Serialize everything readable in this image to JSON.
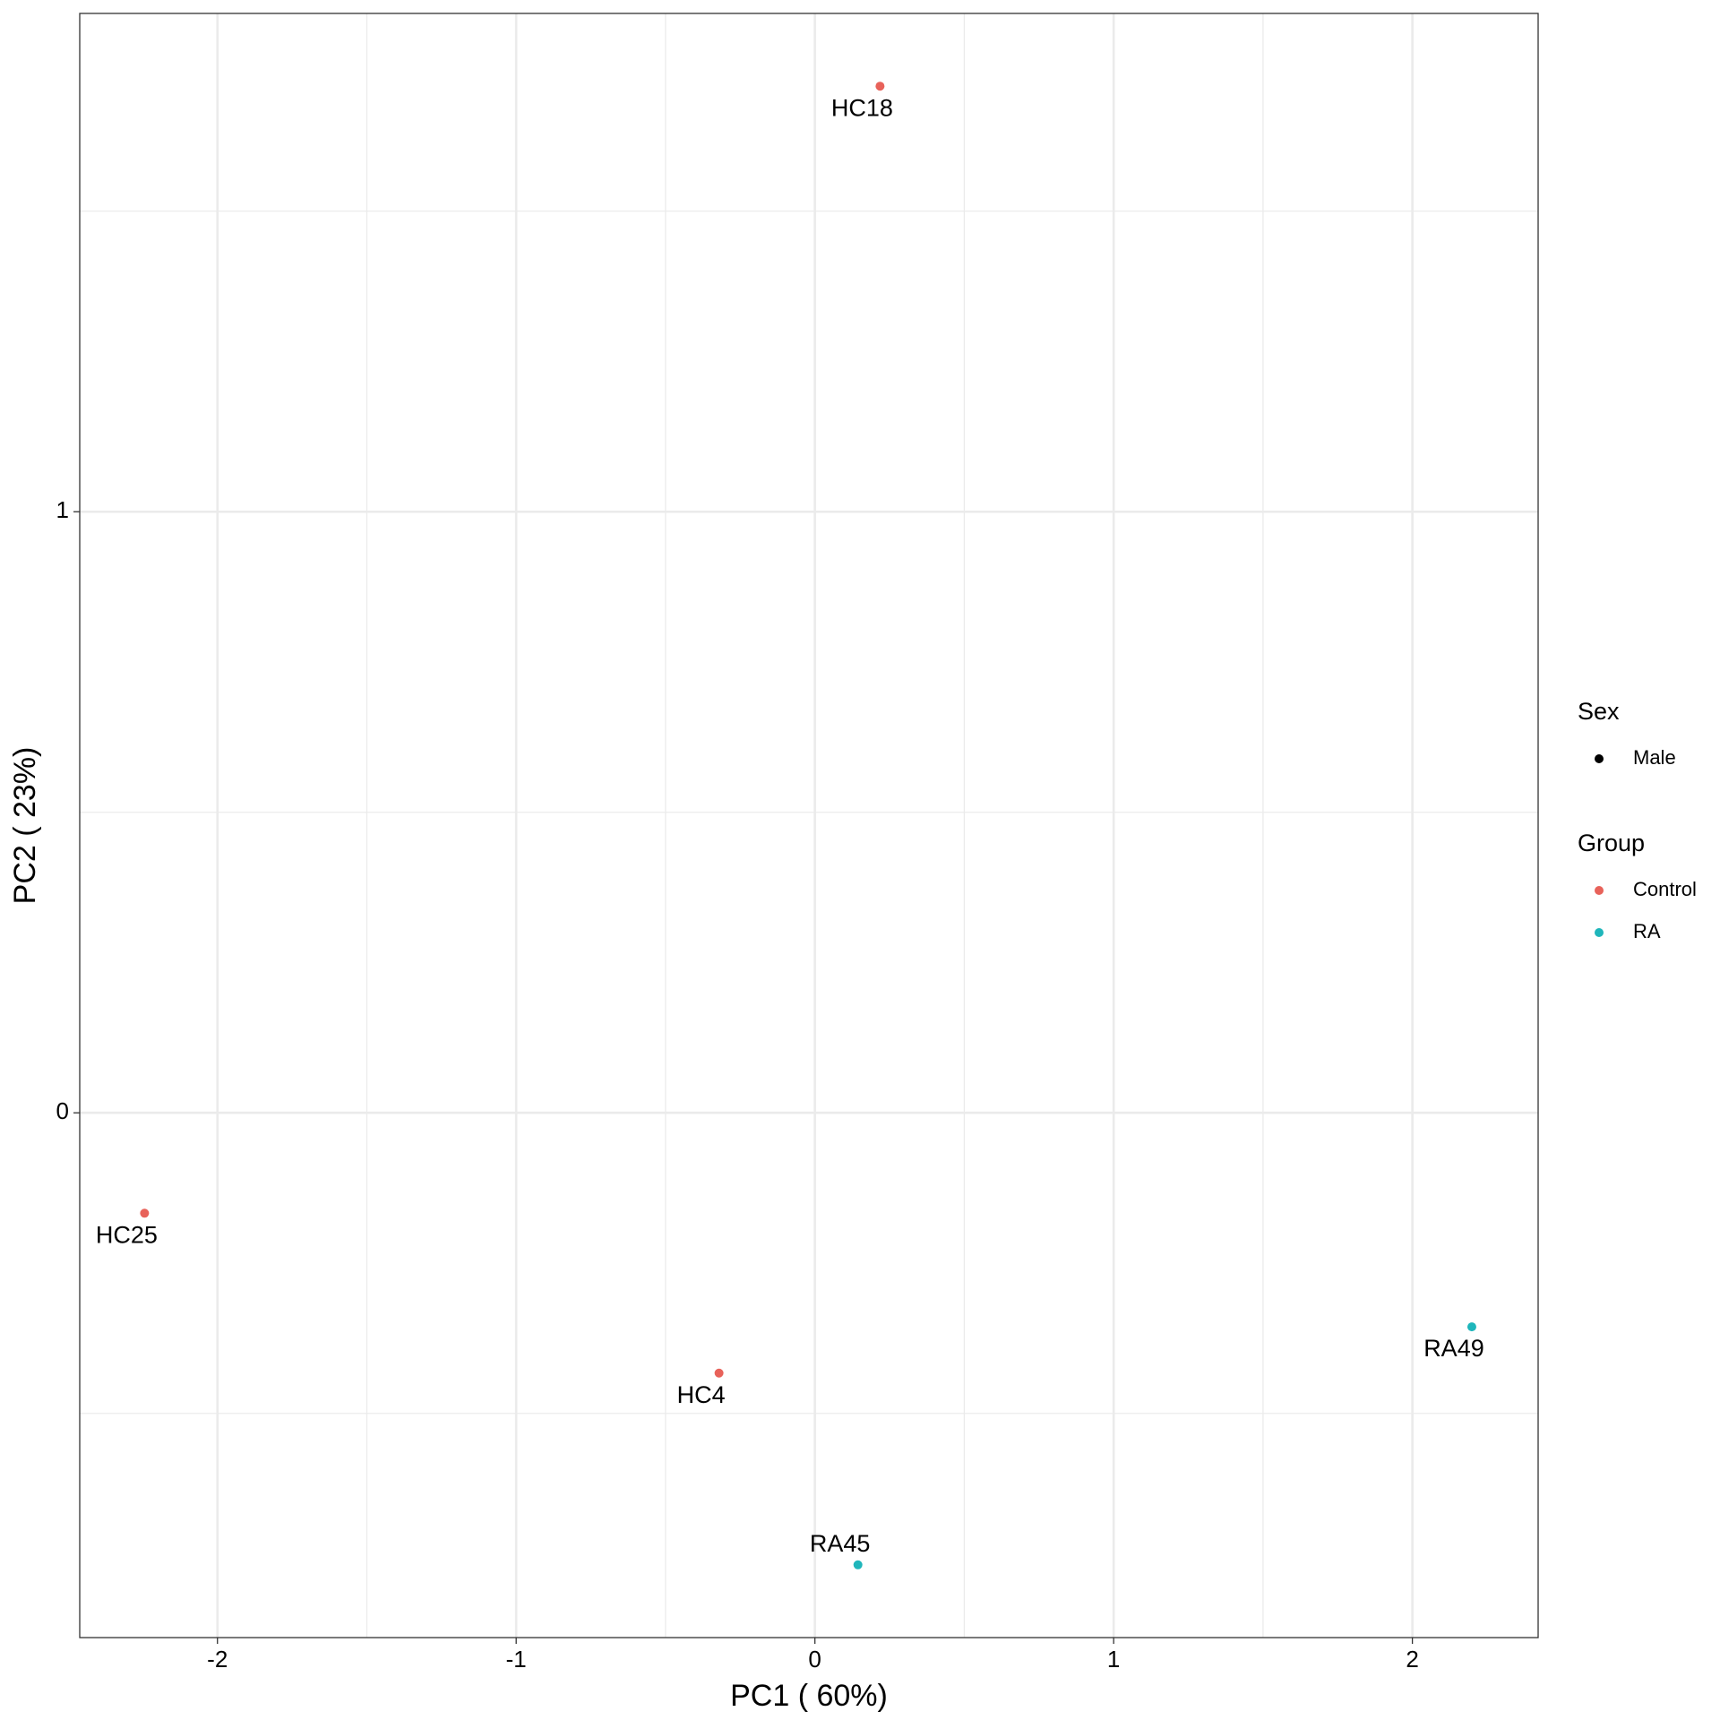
{
  "chart_data": {
    "type": "scatter",
    "x_label": "PC1 ( 60%)",
    "y_label": "PC2 ( 23%)",
    "xlim": [
      -2.461,
      2.421
    ],
    "xticks": [
      -2,
      -1,
      0,
      1,
      2
    ],
    "ylim": [
      -0.873,
      1.829
    ],
    "yticks": [
      0,
      1
    ],
    "grid": true,
    "series": [
      {
        "name": "Control",
        "color": "#e8625a",
        "x": [
          0.218,
          -2.244,
          -0.321
        ],
        "values": [
          1.708,
          -0.167,
          -0.433
        ],
        "labels": [
          "HC18",
          "HC25",
          "HC4"
        ]
      },
      {
        "name": "RA",
        "color": "#1fb6bb",
        "x": [
          0.144,
          2.199
        ],
        "values": [
          -0.752,
          -0.356
        ],
        "labels": [
          "RA45",
          "RA49"
        ]
      }
    ],
    "legend_group_title": "Group",
    "shape_legend": {
      "title": "Sex",
      "entries": [
        {
          "name": "Male",
          "color": "#000000"
        }
      ]
    }
  }
}
